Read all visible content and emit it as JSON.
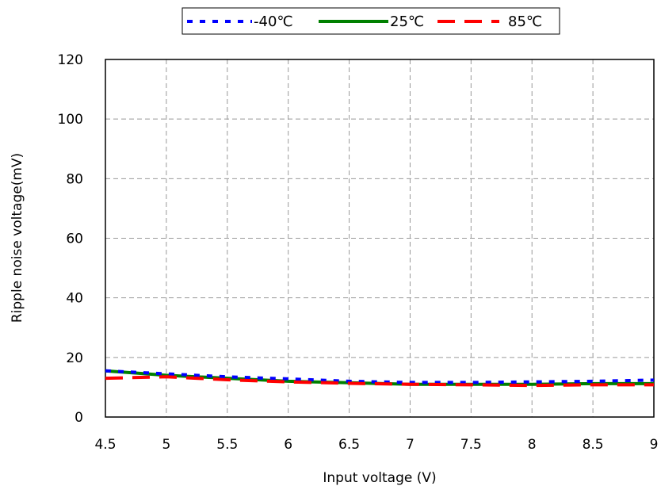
{
  "chart_data": {
    "type": "line",
    "title": "",
    "xlabel": "Input voltage (V)",
    "ylabel": "Ripple noise voltage(mV)",
    "xlim": [
      4.5,
      9
    ],
    "ylim": [
      0,
      120
    ],
    "x_ticks": [
      "4.5",
      "5",
      "5.5",
      "6",
      "6.5",
      "7",
      "7.5",
      "8",
      "8.5",
      "9"
    ],
    "y_ticks": [
      "0",
      "20",
      "40",
      "60",
      "80",
      "100",
      "120"
    ],
    "grid": true,
    "legend_position": "top-center",
    "x": [
      4.5,
      5,
      5.5,
      6,
      6.5,
      7,
      7.5,
      8,
      8.5,
      9
    ],
    "series": [
      {
        "name": "-40℃",
        "color": "#0000ff",
        "style": "dotted",
        "values": [
          15.5,
          14.5,
          13.5,
          12.8,
          12.0,
          11.6,
          11.6,
          11.8,
          12.0,
          12.4
        ]
      },
      {
        "name": "25℃",
        "color": "#008000",
        "style": "solid",
        "values": [
          15.5,
          14.0,
          13.0,
          12.0,
          11.5,
          11.0,
          11.0,
          11.0,
          11.2,
          11.2
        ]
      },
      {
        "name": "85℃",
        "color": "#ff0000",
        "style": "dashed",
        "values": [
          13.0,
          13.5,
          12.5,
          11.8,
          11.3,
          11.0,
          10.8,
          10.6,
          10.8,
          10.8
        ]
      }
    ]
  }
}
